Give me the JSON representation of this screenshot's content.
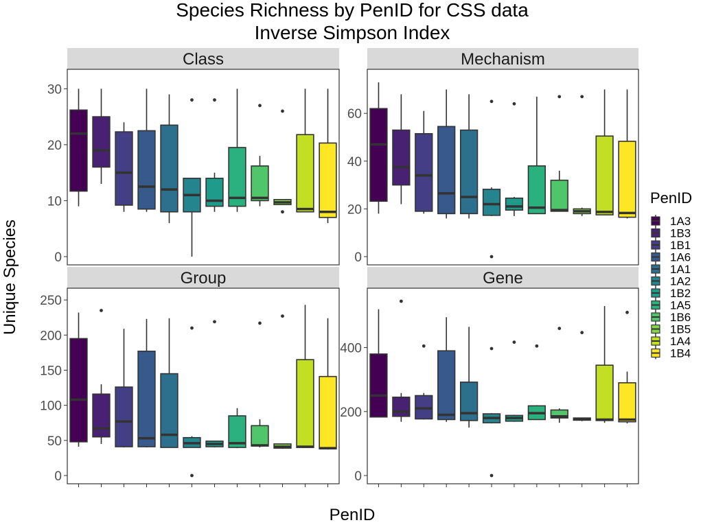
{
  "chart_data": {
    "type": "box",
    "title": "Species Richness by PenID for CSS data",
    "subtitle": "Inverse Simpson Index",
    "xlabel": "PenID",
    "ylabel": "Unique Species",
    "legend": {
      "title": "PenID",
      "placement": "right",
      "entries": [
        "1A3",
        "1B3",
        "1B1",
        "1A6",
        "1A1",
        "1A2",
        "1B2",
        "1A5",
        "1B6",
        "1B5",
        "1A4",
        "1B4"
      ]
    },
    "colors": [
      "#440154",
      "#482173",
      "#433E85",
      "#38598C",
      "#2D708E",
      "#25858E",
      "#1E9B8A",
      "#2BB07F",
      "#51C56A",
      "#85D54A",
      "#C2DF23",
      "#FDE725"
    ],
    "grid": false,
    "panels": [
      {
        "name": "Class",
        "ylim": [
          0,
          32
        ],
        "yticks": [
          0,
          10,
          20,
          30
        ],
        "boxes": [
          {
            "id": "1A3",
            "q1": 11.7,
            "median": 22,
            "q3": 26.2,
            "lower": 9,
            "upper": 30,
            "outliers": []
          },
          {
            "id": "1B3",
            "q1": 16,
            "median": 19,
            "q3": 25,
            "lower": 13,
            "upper": 30,
            "outliers": []
          },
          {
            "id": "1B1",
            "q1": 9.2,
            "median": 15,
            "q3": 22.3,
            "lower": 8,
            "upper": 24,
            "outliers": []
          },
          {
            "id": "1A6",
            "q1": 8.5,
            "median": 12.5,
            "q3": 22.5,
            "lower": 8,
            "upper": 30,
            "outliers": []
          },
          {
            "id": "1A1",
            "q1": 8,
            "median": 12,
            "q3": 23.5,
            "lower": 6,
            "upper": 29,
            "outliers": []
          },
          {
            "id": "1A2",
            "q1": 8,
            "median": 11,
            "q3": 14,
            "lower": 0,
            "upper": 14,
            "outliers": [
              28
            ]
          },
          {
            "id": "1B2",
            "q1": 9,
            "median": 10,
            "q3": 14,
            "lower": 8,
            "upper": 15,
            "outliers": [
              28
            ]
          },
          {
            "id": "1A5",
            "q1": 9,
            "median": 10.5,
            "q3": 19.5,
            "lower": 8,
            "upper": 30,
            "outliers": []
          },
          {
            "id": "1B6",
            "q1": 10,
            "median": 10.5,
            "q3": 16.2,
            "lower": 9,
            "upper": 18,
            "outliers": [
              27
            ]
          },
          {
            "id": "1B5",
            "q1": 9.3,
            "median": 9.7,
            "q3": 10.2,
            "lower": 9.3,
            "upper": 10.2,
            "outliers": [
              8,
              26
            ]
          },
          {
            "id": "1A4",
            "q1": 8,
            "median": 8.5,
            "q3": 21.8,
            "lower": 8,
            "upper": 30,
            "outliers": []
          },
          {
            "id": "1B4",
            "q1": 7,
            "median": 8,
            "q3": 20.3,
            "lower": 6,
            "upper": 30,
            "outliers": []
          }
        ]
      },
      {
        "name": "Mechanism",
        "ylim": [
          0,
          75
        ],
        "yticks": [
          0,
          20,
          40,
          60
        ],
        "boxes": [
          {
            "id": "1A3",
            "q1": 23.2,
            "median": 47,
            "q3": 62,
            "lower": 18,
            "upper": 73,
            "outliers": []
          },
          {
            "id": "1B3",
            "q1": 30,
            "median": 37.5,
            "q3": 53,
            "lower": 22,
            "upper": 68,
            "outliers": []
          },
          {
            "id": "1B1",
            "q1": 19,
            "median": 34,
            "q3": 51.5,
            "lower": 18,
            "upper": 61,
            "outliers": []
          },
          {
            "id": "1A6",
            "q1": 18,
            "median": 26.5,
            "q3": 54.5,
            "lower": 16,
            "upper": 70,
            "outliers": []
          },
          {
            "id": "1A1",
            "q1": 18,
            "median": 25,
            "q3": 53,
            "lower": 16,
            "upper": 68,
            "outliers": []
          },
          {
            "id": "1A2",
            "q1": 17.3,
            "median": 22,
            "q3": 28.2,
            "lower": 17,
            "upper": 29,
            "outliers": [
              0,
              65
            ]
          },
          {
            "id": "1B2",
            "q1": 19.5,
            "median": 21,
            "q3": 24.5,
            "lower": 17,
            "upper": 25,
            "outliers": [
              64
            ]
          },
          {
            "id": "1A5",
            "q1": 18,
            "median": 20.5,
            "q3": 38,
            "lower": 18,
            "upper": 67,
            "outliers": []
          },
          {
            "id": "1B6",
            "q1": 19,
            "median": 19.5,
            "q3": 32,
            "lower": 19,
            "upper": 36,
            "outliers": [
              67
            ]
          },
          {
            "id": "1B5",
            "q1": 18,
            "median": 19,
            "q3": 20,
            "lower": 17,
            "upper": 20.5,
            "outliers": [
              67
            ]
          },
          {
            "id": "1A4",
            "q1": 17.5,
            "median": 18.7,
            "q3": 50.5,
            "lower": 17.5,
            "upper": 70,
            "outliers": []
          },
          {
            "id": "1B4",
            "q1": 16.5,
            "median": 18.3,
            "q3": 48.3,
            "lower": 16,
            "upper": 70,
            "outliers": []
          }
        ]
      },
      {
        "name": "Group",
        "ylim": [
          0,
          255
        ],
        "yticks": [
          0,
          50,
          100,
          150,
          200,
          250
        ],
        "boxes": [
          {
            "id": "1A3",
            "q1": 48,
            "median": 108,
            "q3": 195,
            "lower": 41,
            "upper": 232,
            "outliers": []
          },
          {
            "id": "1B3",
            "q1": 55,
            "median": 67,
            "q3": 116,
            "lower": 45,
            "upper": 130,
            "outliers": [
              235
            ]
          },
          {
            "id": "1B1",
            "q1": 41,
            "median": 77,
            "q3": 126,
            "lower": 40,
            "upper": 209,
            "outliers": []
          },
          {
            "id": "1A6",
            "q1": 41,
            "median": 53,
            "q3": 177,
            "lower": 40,
            "upper": 223,
            "outliers": []
          },
          {
            "id": "1A1",
            "q1": 40,
            "median": 58,
            "q3": 145,
            "lower": 40,
            "upper": 224,
            "outliers": []
          },
          {
            "id": "1A2",
            "q1": 40,
            "median": 46,
            "q3": 54,
            "lower": 40,
            "upper": 56,
            "outliers": [
              0,
              210
            ]
          },
          {
            "id": "1B2",
            "q1": 41,
            "median": 45,
            "q3": 49,
            "lower": 40,
            "upper": 49,
            "outliers": [
              219
            ]
          },
          {
            "id": "1A5",
            "q1": 40,
            "median": 46,
            "q3": 85,
            "lower": 39,
            "upper": 96,
            "outliers": []
          },
          {
            "id": "1B6",
            "q1": 42,
            "median": 43,
            "q3": 71,
            "lower": 40,
            "upper": 80,
            "outliers": [
              217
            ]
          },
          {
            "id": "1B5",
            "q1": 39,
            "median": 41,
            "q3": 45,
            "lower": 38,
            "upper": 45,
            "outliers": [
              227
            ]
          },
          {
            "id": "1A4",
            "q1": 40,
            "median": 41,
            "q3": 165,
            "lower": 40,
            "upper": 243,
            "outliers": []
          },
          {
            "id": "1B4",
            "q1": 38,
            "median": 39,
            "q3": 141,
            "lower": 37,
            "upper": 224,
            "outliers": []
          }
        ]
      },
      {
        "name": "Gene",
        "ylim": [
          0,
          560
        ],
        "yticks": [
          0,
          200,
          400
        ],
        "boxes": [
          {
            "id": "1A3",
            "q1": 183,
            "median": 250,
            "q3": 380,
            "lower": 182,
            "upper": 520,
            "outliers": []
          },
          {
            "id": "1B3",
            "q1": 185,
            "median": 200,
            "q3": 245,
            "lower": 168,
            "upper": 258,
            "outliers": [
              545
            ]
          },
          {
            "id": "1B1",
            "q1": 177,
            "median": 210,
            "q3": 250,
            "lower": 175,
            "upper": 258,
            "outliers": [
              405
            ]
          },
          {
            "id": "1A6",
            "q1": 175,
            "median": 190,
            "q3": 390,
            "lower": 168,
            "upper": 495,
            "outliers": []
          },
          {
            "id": "1A1",
            "q1": 172,
            "median": 195,
            "q3": 292,
            "lower": 150,
            "upper": 465,
            "outliers": []
          },
          {
            "id": "1A2",
            "q1": 165,
            "median": 180,
            "q3": 193,
            "lower": 163,
            "upper": 195,
            "outliers": [
              0,
              397
            ]
          },
          {
            "id": "1B2",
            "q1": 170,
            "median": 180,
            "q3": 188,
            "lower": 168,
            "upper": 190,
            "outliers": [
              417
            ]
          },
          {
            "id": "1A5",
            "q1": 175,
            "median": 195,
            "q3": 218,
            "lower": 175,
            "upper": 220,
            "outliers": [
              405
            ]
          },
          {
            "id": "1B6",
            "q1": 180,
            "median": 185,
            "q3": 205,
            "lower": 165,
            "upper": 210,
            "outliers": [
              460
            ]
          },
          {
            "id": "1B5",
            "q1": 173,
            "median": 177,
            "q3": 180,
            "lower": 170,
            "upper": 180,
            "outliers": [
              447
            ]
          },
          {
            "id": "1A4",
            "q1": 172,
            "median": 175,
            "q3": 345,
            "lower": 165,
            "upper": 530,
            "outliers": []
          },
          {
            "id": "1B4",
            "q1": 168,
            "median": 175,
            "q3": 290,
            "lower": 163,
            "upper": 325,
            "outliers": [
              510
            ]
          }
        ]
      }
    ]
  }
}
